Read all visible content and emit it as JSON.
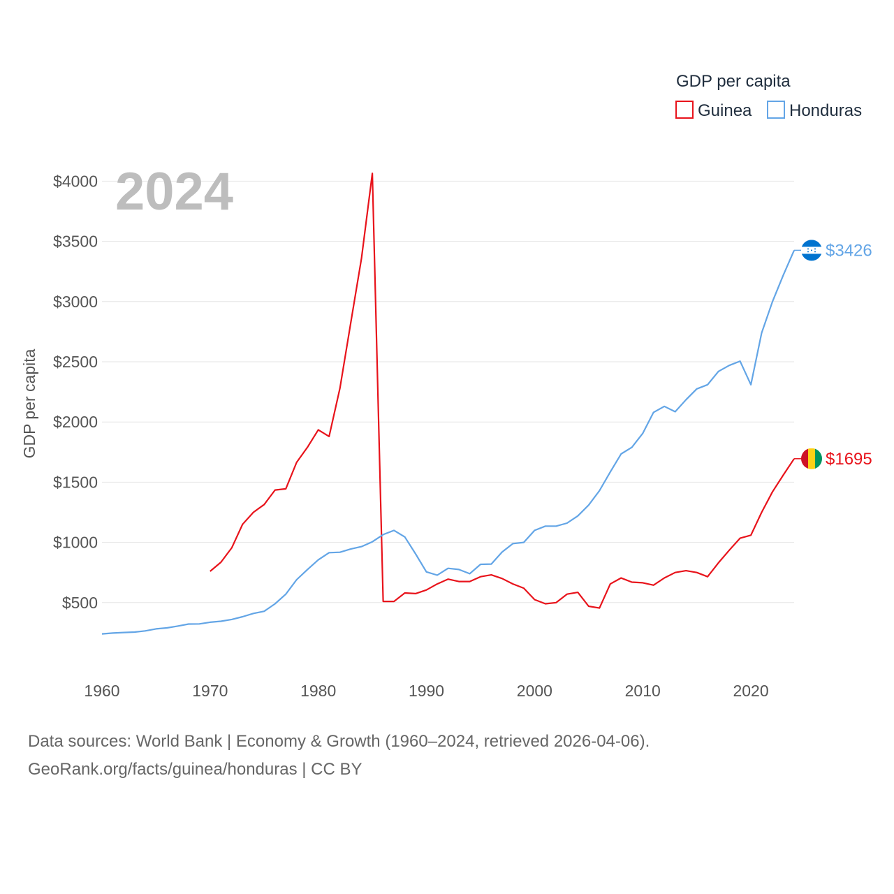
{
  "chart_data": {
    "type": "line",
    "title": "GDP per capita",
    "year_label": "2024",
    "ylabel": "GDP per capita",
    "xlabel": "",
    "xlim": [
      1960,
      2024
    ],
    "ylim": [
      0,
      4200
    ],
    "x_ticks": [
      1960,
      1970,
      1980,
      1990,
      2000,
      2010,
      2020
    ],
    "y_ticks": [
      {
        "value": 500,
        "label": "$500"
      },
      {
        "value": 1000,
        "label": "$1000"
      },
      {
        "value": 1500,
        "label": "$1500"
      },
      {
        "value": 2000,
        "label": "$2000"
      },
      {
        "value": 2500,
        "label": "$2500"
      },
      {
        "value": 3000,
        "label": "$3000"
      },
      {
        "value": 3500,
        "label": "$3500"
      },
      {
        "value": 4000,
        "label": "$4000"
      }
    ],
    "legend": {
      "title": "GDP per capita",
      "position": "top-right"
    },
    "series": [
      {
        "name": "Guinea",
        "color": "#e8131b",
        "end_label": "$1695",
        "flag_colors": [
          "#ce1126",
          "#fcd116",
          "#009460"
        ],
        "x": [
          1970,
          1971,
          1972,
          1973,
          1974,
          1975,
          1976,
          1977,
          1978,
          1979,
          1980,
          1981,
          1982,
          1983,
          1984,
          1985,
          1986,
          1987,
          1988,
          1989,
          1990,
          1991,
          1992,
          1993,
          1994,
          1995,
          1996,
          1997,
          1998,
          1999,
          2000,
          2001,
          2002,
          2003,
          2004,
          2005,
          2006,
          2007,
          2008,
          2009,
          2010,
          2011,
          2012,
          2013,
          2014,
          2015,
          2016,
          2017,
          2018,
          2019,
          2020,
          2021,
          2022,
          2023,
          2024
        ],
        "values": [
          760,
          835,
          955,
          1150,
          1250,
          1315,
          1435,
          1445,
          1665,
          1790,
          1935,
          1880,
          2280,
          2820,
          3360,
          4065,
          510,
          510,
          580,
          575,
          605,
          655,
          695,
          675,
          675,
          715,
          730,
          700,
          655,
          620,
          525,
          490,
          500,
          570,
          585,
          470,
          455,
          655,
          705,
          670,
          665,
          645,
          705,
          750,
          765,
          750,
          715,
          830,
          935,
          1035,
          1060,
          1250,
          1420,
          1560,
          1695
        ]
      },
      {
        "name": "Honduras",
        "color": "#63a5e6",
        "end_label": "$3426",
        "flag_colors": [
          "#0073cf",
          "#ffffff",
          "#0073cf"
        ],
        "x": [
          1960,
          1961,
          1962,
          1963,
          1964,
          1965,
          1966,
          1967,
          1968,
          1969,
          1970,
          1971,
          1972,
          1973,
          1974,
          1975,
          1976,
          1977,
          1978,
          1979,
          1980,
          1981,
          1982,
          1983,
          1984,
          1985,
          1986,
          1987,
          1988,
          1989,
          1990,
          1991,
          1992,
          1993,
          1994,
          1995,
          1996,
          1997,
          1998,
          1999,
          2000,
          2001,
          2002,
          2003,
          2004,
          2005,
          2006,
          2007,
          2008,
          2009,
          2010,
          2011,
          2012,
          2013,
          2014,
          2015,
          2016,
          2017,
          2018,
          2019,
          2020,
          2021,
          2022,
          2023,
          2024
        ],
        "values": [
          240,
          247,
          252,
          255,
          265,
          282,
          290,
          305,
          322,
          323,
          337,
          345,
          360,
          383,
          410,
          428,
          490,
          570,
          690,
          775,
          855,
          915,
          918,
          945,
          965,
          1005,
          1065,
          1100,
          1045,
          905,
          755,
          728,
          785,
          775,
          740,
          818,
          820,
          920,
          990,
          1000,
          1100,
          1135,
          1135,
          1160,
          1220,
          1310,
          1430,
          1585,
          1735,
          1790,
          1905,
          2080,
          2130,
          2085,
          2185,
          2275,
          2310,
          2420,
          2470,
          2505,
          2310,
          2740,
          3000,
          3220,
          3426
        ]
      }
    ]
  },
  "footer": {
    "line1": "Data sources: World Bank | Economy & Growth (1960–2024, retrieved 2026-04-06).",
    "line2": "GeoRank.org/facts/guinea/honduras | CC BY"
  }
}
